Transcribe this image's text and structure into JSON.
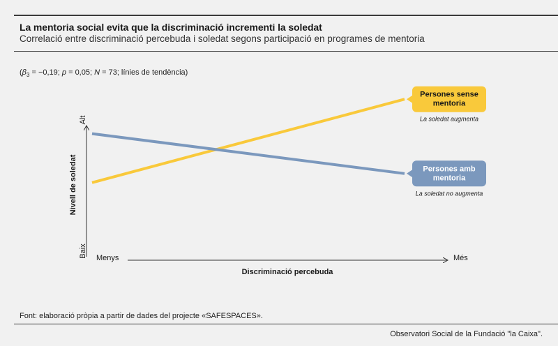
{
  "header": {
    "title": "La mentoria social evita que la discriminació incrementi la soledat",
    "subtitle": "Correlació entre discriminació percebuda i soledat segons participació en programes de mentoria"
  },
  "stats": {
    "beta": "β",
    "beta_sub": "3",
    "beta_rest": " = −0,19; ",
    "p": "p",
    "p_rest": " = 0,05; ",
    "n": "N",
    "n_rest": " = 73; línies de tendència)"
  },
  "footer": {
    "source": "Font: elaboració pròpia a partir de dades del projecte «SAFESPACES».",
    "credit": "Observatori Social de la Fundació \"la Caixa\"."
  },
  "chart_data": {
    "type": "line",
    "title": "La mentoria social evita que la discriminació incrementi la soledat",
    "xlabel": "Discriminació percebuda",
    "ylabel": "Nivell de soledat",
    "x_ticks": [
      "Menys",
      "Més"
    ],
    "y_ticks": [
      "Baix",
      "Alt"
    ],
    "x": [
      0,
      1
    ],
    "ylim": [
      0,
      1
    ],
    "grid": false,
    "series": [
      {
        "name": "Persones sense mentoria",
        "note": "La soledat augmenta",
        "color": "#f9c93b",
        "text_color": "#1a1a1a",
        "values": [
          0.42,
          0.88
        ]
      },
      {
        "name": "Persones amb mentoria",
        "note": "La soledat no augmenta",
        "color": "#7b98bd",
        "text_color": "#ffffff",
        "values": [
          0.69,
          0.47
        ]
      }
    ]
  }
}
